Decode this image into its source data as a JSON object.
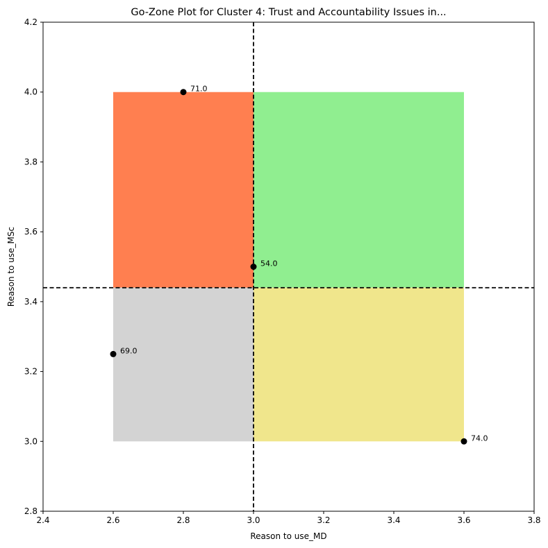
{
  "chart_data": {
    "type": "scatter",
    "title": "Go-Zone Plot for Cluster 4: Trust and Accountability Issues in...",
    "xlabel": "Reason to use_MD",
    "ylabel": "Reason to use_MSc",
    "xlim": [
      2.4,
      3.8
    ],
    "ylim": [
      2.8,
      4.2
    ],
    "xticks": [
      2.4,
      2.6,
      2.8,
      3.0,
      3.2,
      3.4,
      3.6,
      3.8
    ],
    "yticks": [
      2.8,
      3.0,
      3.2,
      3.4,
      3.6,
      3.8,
      4.0,
      4.2
    ],
    "xtick_labels": [
      "2.4",
      "2.6",
      "2.8",
      "3.0",
      "3.2",
      "3.4",
      "3.6",
      "3.8"
    ],
    "ytick_labels": [
      "2.8",
      "3.0",
      "3.2",
      "3.4",
      "3.6",
      "3.8",
      "4.0",
      "4.2"
    ],
    "grid": false,
    "mean_lines": {
      "x": 3.0,
      "y": 3.44
    },
    "quadrants": [
      {
        "x": [
          2.6,
          3.0
        ],
        "y": [
          3.44,
          4.0
        ],
        "color": "#ff7f50"
      },
      {
        "x": [
          3.0,
          3.6
        ],
        "y": [
          3.44,
          4.0
        ],
        "color": "#90ee90"
      },
      {
        "x": [
          2.6,
          3.0
        ],
        "y": [
          3.0,
          3.44
        ],
        "color": "#d3d3d3"
      },
      {
        "x": [
          3.0,
          3.6
        ],
        "y": [
          3.0,
          3.44
        ],
        "color": "#f0e68c"
      }
    ],
    "points": [
      {
        "x": 2.8,
        "y": 4.0,
        "label": "71.0"
      },
      {
        "x": 3.0,
        "y": 3.5,
        "label": "54.0"
      },
      {
        "x": 2.6,
        "y": 3.25,
        "label": "69.0"
      },
      {
        "x": 3.6,
        "y": 3.0,
        "label": "74.0"
      }
    ],
    "point_color": "#000000",
    "line_color": "#000000"
  }
}
